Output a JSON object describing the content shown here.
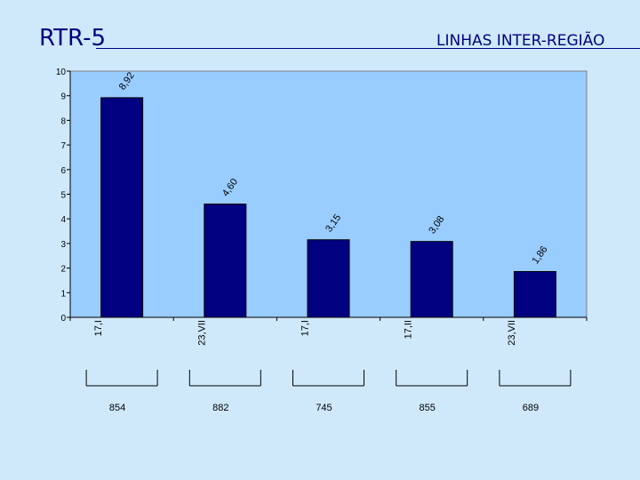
{
  "slide": {
    "title": "RTR-5",
    "subtitle": "LINHAS INTER-REGIÃO"
  },
  "colors": {
    "background": "#cfe9fb",
    "plot_area": "#99ccff",
    "bar": "#000080"
  },
  "chart_data": {
    "type": "bar",
    "categories": [
      "17,I",
      "23,VII",
      "17,I",
      "17,II",
      "23,VII"
    ],
    "values": [
      8.92,
      4.6,
      3.15,
      3.08,
      1.86
    ],
    "data_labels": [
      "8,92",
      "4,60",
      "3,15",
      "3,08",
      "1,86"
    ],
    "group_labels": [
      "854",
      "882",
      "745",
      "855",
      "689"
    ],
    "ylim": [
      0,
      10
    ],
    "yticks": [
      "0",
      "1",
      "2",
      "3",
      "4",
      "5",
      "6",
      "7",
      "8",
      "9",
      "10"
    ],
    "grid": false,
    "legend": "none"
  }
}
